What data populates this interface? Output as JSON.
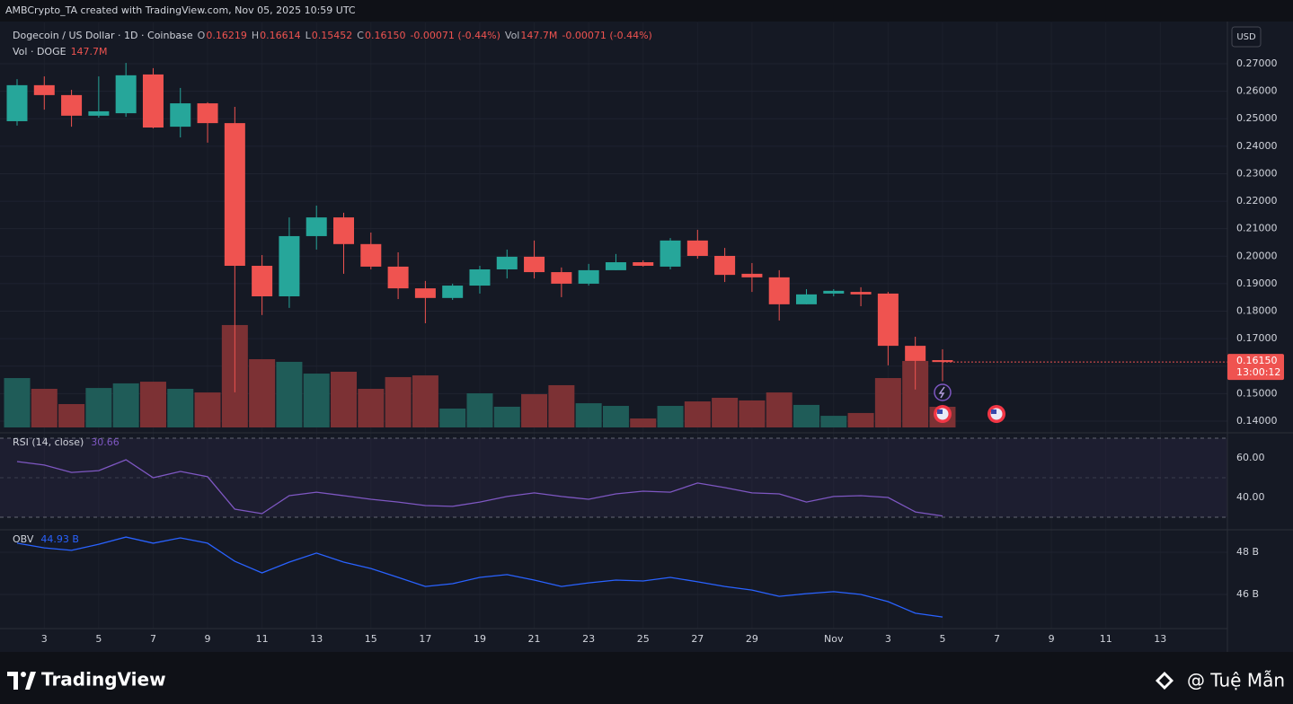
{
  "header": {
    "credit": "AMBCrypto_TA created with TradingView.com, Nov 05, 2025 10:59 UTC"
  },
  "footer": {
    "brand": "TradingView",
    "watermark": "@ Tuệ Mẫn"
  },
  "chart_data": {
    "type": "candlestick",
    "legend": {
      "symbol": "Dogecoin / US Dollar · 1D · Coinbase",
      "o_label": "O",
      "o": "0.16219",
      "h_label": "H",
      "h": "0.16614",
      "l_label": "L",
      "l": "0.15452",
      "c_label": "C",
      "c": "0.16150",
      "change": "-0.00071 (-0.44%)",
      "vol_label": "Vol",
      "vol": "147.7M",
      "vol_change": "-0.00071 (-0.44%)",
      "vol_row_label": "Vol · DOGE",
      "vol_row_value": "147.7M"
    },
    "currency": "USD",
    "colors": {
      "up": "#26a69a",
      "down": "#ef5350",
      "up_volume": "#1f5c58",
      "down_volume": "#7c3134"
    },
    "open": [
      0.2491,
      0.2622,
      0.2586,
      0.2511,
      0.252,
      0.2661,
      0.2471,
      0.2556,
      0.2484,
      0.1965,
      0.1854,
      0.2073,
      0.2141,
      0.2044,
      0.1962,
      0.1883,
      0.1848,
      0.1893,
      0.1952,
      0.1998,
      0.1942,
      0.19,
      0.1949,
      0.1978,
      0.1962,
      0.2057,
      0.2001,
      0.1936,
      0.1923,
      0.1825,
      0.1864,
      0.187,
      0.1864,
      0.1674,
      0.16219
    ],
    "high": [
      0.2644,
      0.2654,
      0.2605,
      0.2654,
      0.2703,
      0.2684,
      0.2612,
      0.256,
      0.2543,
      0.2004,
      0.2141,
      0.2184,
      0.2158,
      0.2086,
      0.2014,
      0.191,
      0.19,
      0.1965,
      0.2024,
      0.2057,
      0.1959,
      0.1972,
      0.2008,
      0.1985,
      0.2066,
      0.2096,
      0.203,
      0.1975,
      0.1949,
      0.188,
      0.188,
      0.1887,
      0.187,
      0.1707,
      0.16614
    ],
    "low": [
      0.2475,
      0.2533,
      0.2471,
      0.2504,
      0.2507,
      0.2465,
      0.2432,
      0.2413,
      0.1505,
      0.1786,
      0.1812,
      0.2024,
      0.1936,
      0.1952,
      0.1844,
      0.1756,
      0.1841,
      0.1864,
      0.1919,
      0.1919,
      0.1851,
      0.1893,
      0.1949,
      0.1962,
      0.1952,
      0.1991,
      0.1906,
      0.187,
      0.1766,
      0.1825,
      0.1854,
      0.1818,
      0.1603,
      0.1515,
      0.15452
    ],
    "close": [
      0.2622,
      0.2586,
      0.2511,
      0.2527,
      0.2658,
      0.2468,
      0.2556,
      0.2484,
      0.1965,
      0.1854,
      0.2073,
      0.2141,
      0.2044,
      0.1962,
      0.1883,
      0.1848,
      0.1893,
      0.1952,
      0.1998,
      0.1942,
      0.19,
      0.1949,
      0.1978,
      0.1965,
      0.2057,
      0.2001,
      0.1932,
      0.1923,
      0.1825,
      0.1861,
      0.1874,
      0.1861,
      0.1674,
      0.1619,
      0.1615
    ],
    "volume": [
      353,
      276,
      167,
      282,
      315,
      327,
      276,
      250,
      732,
      488,
      469,
      385,
      398,
      276,
      360,
      372,
      135,
      244,
      148,
      238,
      302,
      173,
      154,
      64,
      154,
      186,
      212,
      193,
      250,
      161,
      83,
      103,
      353,
      475,
      147.7
    ],
    "volume_lim": [
      0,
      1284
    ],
    "ylim": [
      0.13477,
      0.28502
    ],
    "yticks": [
      {
        "value": 0.14,
        "label": "0.14000"
      },
      {
        "value": 0.15,
        "label": "0.15000"
      },
      {
        "value": 0.16,
        "label": "0.16000"
      },
      {
        "value": 0.17,
        "label": "0.17000"
      },
      {
        "value": 0.18,
        "label": "0.18000"
      },
      {
        "value": 0.19,
        "label": "0.19000"
      },
      {
        "value": 0.2,
        "label": "0.20000"
      },
      {
        "value": 0.21,
        "label": "0.21000"
      },
      {
        "value": 0.22,
        "label": "0.22000"
      },
      {
        "value": 0.23,
        "label": "0.23000"
      },
      {
        "value": 0.24,
        "label": "0.24000"
      },
      {
        "value": 0.25,
        "label": "0.25000"
      },
      {
        "value": 0.26,
        "label": "0.26000"
      },
      {
        "value": 0.27,
        "label": "0.27000"
      }
    ],
    "last_price": {
      "value": 0.1615,
      "label": "0.16150",
      "countdown": "13:00:12"
    },
    "xlim": [
      -0.627,
      44.466
    ],
    "xticks": [
      {
        "value": 1,
        "label": "3"
      },
      {
        "value": 3,
        "label": "5"
      },
      {
        "value": 5,
        "label": "7"
      },
      {
        "value": 7,
        "label": "9"
      },
      {
        "value": 9,
        "label": "11"
      },
      {
        "value": 11,
        "label": "13"
      },
      {
        "value": 13,
        "label": "15"
      },
      {
        "value": 15,
        "label": "17"
      },
      {
        "value": 17,
        "label": "19"
      },
      {
        "value": 19,
        "label": "21"
      },
      {
        "value": 21,
        "label": "23"
      },
      {
        "value": 23,
        "label": "25"
      },
      {
        "value": 25,
        "label": "27"
      },
      {
        "value": 27,
        "label": "29"
      },
      {
        "value": 30,
        "label": "Nov"
      },
      {
        "value": 32,
        "label": "3"
      },
      {
        "value": 34,
        "label": "5"
      },
      {
        "value": 36,
        "label": "7"
      },
      {
        "value": 38,
        "label": "9"
      },
      {
        "value": 40,
        "label": "11"
      },
      {
        "value": 42,
        "label": "13"
      }
    ],
    "indicators": [
      {
        "type": "line",
        "name": "RSI (14, close)",
        "last_label": "30.66",
        "color": "#7e57c2",
        "values": [
          58.2,
          56.4,
          52.7,
          53.6,
          59.1,
          50,
          53.2,
          50.5,
          34.1,
          31.8,
          40.9,
          42.7,
          40.9,
          39.1,
          37.7,
          35.9,
          35.5,
          37.7,
          40.5,
          42.3,
          40.5,
          39.1,
          41.8,
          43.2,
          42.7,
          47.3,
          45,
          42.3,
          41.8,
          37.7,
          40.5,
          40.9,
          40,
          32.7,
          30.66
        ],
        "ylim": [
          24.55,
          72.73
        ],
        "yticks": [
          {
            "value": 40,
            "label": "40.00"
          },
          {
            "value": 60,
            "label": "60.00"
          }
        ],
        "levels": [
          30,
          50,
          70
        ]
      },
      {
        "type": "line",
        "name": "OBV",
        "last_label": "44.93 B",
        "color": "#2962ff",
        "values": [
          48.43,
          48.21,
          48.09,
          48.38,
          48.72,
          48.43,
          48.68,
          48.43,
          47.57,
          47.02,
          47.53,
          47.96,
          47.53,
          47.23,
          46.81,
          46.38,
          46.51,
          46.81,
          46.94,
          46.68,
          46.38,
          46.55,
          46.68,
          46.64,
          46.81,
          46.6,
          46.38,
          46.21,
          45.91,
          46.04,
          46.13,
          46,
          45.66,
          45.11,
          44.93
        ],
        "ylim": [
          44.383,
          49.064
        ],
        "yticks": [
          {
            "value": 46,
            "label": "46 B"
          },
          {
            "value": 48,
            "label": "48 B"
          }
        ]
      }
    ]
  }
}
